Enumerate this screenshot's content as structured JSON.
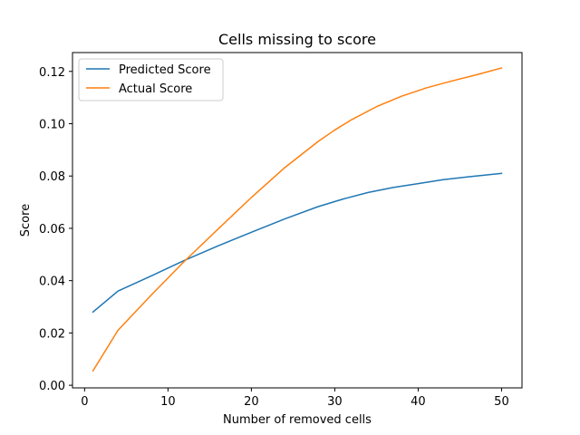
{
  "chart_data": {
    "type": "line",
    "title": "Cells missing to score",
    "xlabel": "Number of removed cells",
    "ylabel": "Score",
    "xlim": [
      -1.45,
      52.45
    ],
    "ylim": [
      -0.001,
      0.1272
    ],
    "xticks": [
      0,
      10,
      20,
      30,
      40,
      50
    ],
    "yticks": [
      0.0,
      0.02,
      0.04,
      0.06,
      0.08,
      0.1,
      0.12
    ],
    "xtick_labels": [
      "0",
      "10",
      "20",
      "30",
      "40",
      "50"
    ],
    "ytick_labels": [
      "0.00",
      "0.02",
      "0.04",
      "0.06",
      "0.08",
      "0.10",
      "0.12"
    ],
    "grid": false,
    "legend_position": "top-left",
    "series": [
      {
        "name": "Predicted Score",
        "color": "#1f77b4",
        "x": [
          1,
          4,
          8,
          12,
          16,
          20,
          24,
          28,
          31,
          34,
          37,
          40,
          43,
          46,
          50
        ],
        "y": [
          0.028,
          0.036,
          0.0418,
          0.0478,
          0.0533,
          0.0585,
          0.0636,
          0.0683,
          0.0712,
          0.0737,
          0.0756,
          0.0771,
          0.0786,
          0.0797,
          0.081
        ]
      },
      {
        "name": "Actual Score",
        "color": "#ff7f0e",
        "x": [
          1,
          4,
          8,
          12,
          16,
          20,
          24,
          28,
          30,
          32,
          35,
          38,
          41,
          44,
          47,
          50
        ],
        "y": [
          0.0055,
          0.021,
          0.0345,
          0.0475,
          0.0597,
          0.0718,
          0.0832,
          0.0932,
          0.0976,
          0.1015,
          0.1065,
          0.1105,
          0.1137,
          0.1163,
          0.1187,
          0.1213
        ]
      }
    ]
  }
}
